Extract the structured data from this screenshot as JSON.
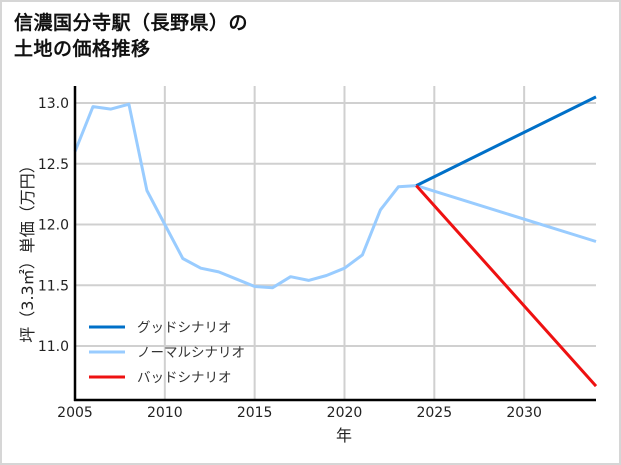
{
  "title_line1": "信濃国分寺駅（長野県）の",
  "title_line2": "土地の価格推移",
  "chart_data": {
    "type": "line",
    "title": "信濃国分寺駅（長野県）の土地の価格推移",
    "xlabel": "年",
    "ylabel": "坪（3.3㎡）単価（万円）",
    "xlim": [
      2005,
      2034
    ],
    "ylim": [
      10.75,
      13.05
    ],
    "xticks": [
      2005,
      2010,
      2015,
      2020,
      2025,
      2030
    ],
    "yticks": [
      11.0,
      11.5,
      12.0,
      12.5,
      13.0
    ],
    "ytick_labels": [
      "11.0",
      "11.5",
      "12.0",
      "12.5",
      "13.0"
    ],
    "grid": true,
    "legend_position": "lower left",
    "series": [
      {
        "name": "グッドシナリオ",
        "color": "#0070c8",
        "x": [
          2024,
          2034
        ],
        "values": [
          12.32,
          13.05
        ]
      },
      {
        "name": "ノーマルシナリオ",
        "color": "#99ccff",
        "x": [
          2005,
          2006,
          2007,
          2008,
          2009,
          2010,
          2011,
          2012,
          2013,
          2014,
          2015,
          2016,
          2017,
          2018,
          2019,
          2020,
          2021,
          2022,
          2023,
          2024,
          2034
        ],
        "values": [
          12.6,
          12.97,
          12.95,
          12.99,
          12.28,
          12.0,
          11.72,
          11.64,
          11.61,
          11.55,
          11.49,
          11.48,
          11.57,
          11.54,
          11.58,
          11.64,
          11.75,
          12.12,
          12.31,
          12.32,
          11.86
        ]
      },
      {
        "name": "バッドシナリオ",
        "color": "#ee1111",
        "x": [
          2024,
          2034
        ],
        "values": [
          12.32,
          10.67
        ]
      }
    ]
  }
}
